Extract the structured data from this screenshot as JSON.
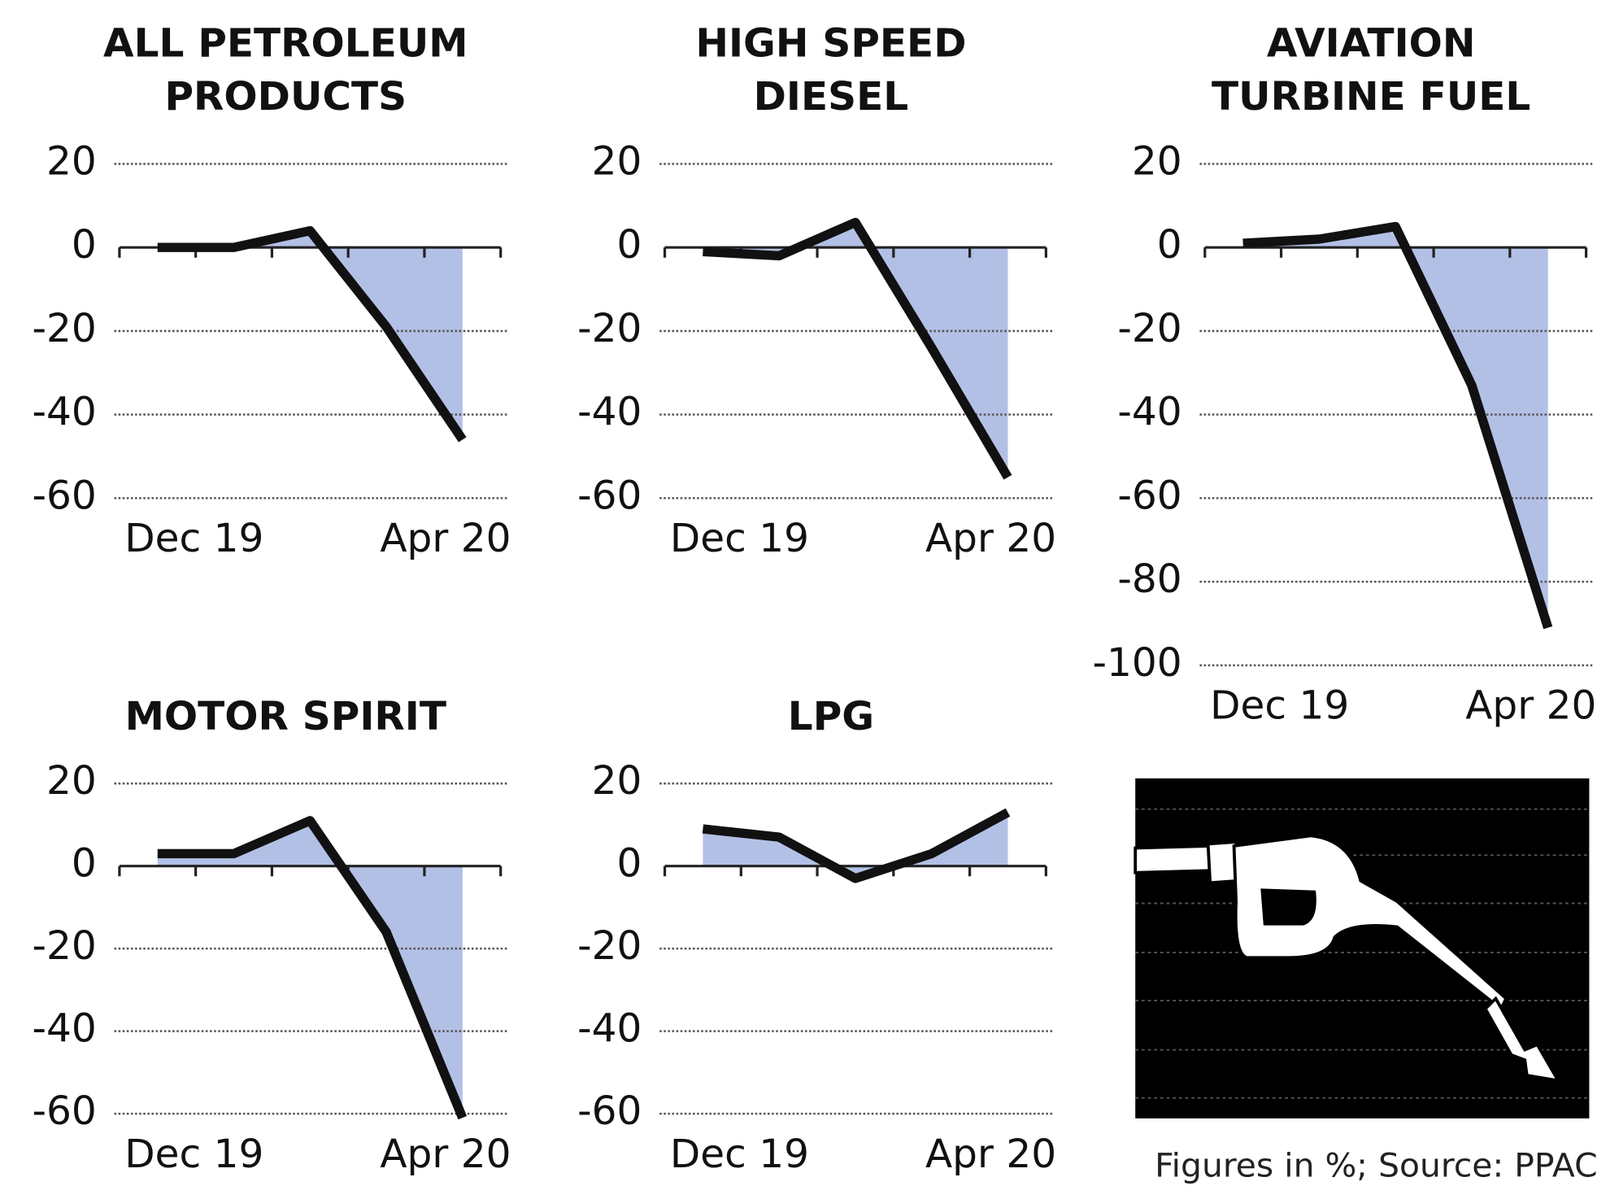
{
  "chart_data": [
    {
      "type": "line",
      "title": [
        "ALL PETROLEUM",
        "PRODUCTS"
      ],
      "categories": [
        "Dec 19",
        null,
        null,
        null,
        "Apr 20"
      ],
      "values": [
        0,
        0,
        4,
        -19,
        -46
      ],
      "color": "#111111",
      "fill": "#b3c0e6",
      "ylim": [
        -60,
        20
      ],
      "yticks": [
        20,
        0,
        -20,
        -40,
        -60
      ],
      "grid": true
    },
    {
      "type": "line",
      "title": [
        "HIGH SPEED",
        "DIESEL"
      ],
      "categories": [
        "Dec 19",
        null,
        null,
        null,
        "Apr 20"
      ],
      "values": [
        -1,
        -2,
        6,
        -24,
        -55
      ],
      "color": "#111111",
      "fill": "#b3c0e6",
      "ylim": [
        -60,
        20
      ],
      "yticks": [
        20,
        0,
        -20,
        -40,
        -60
      ],
      "grid": true
    },
    {
      "type": "line",
      "title": [
        "AVIATION",
        "TURBINE FUEL"
      ],
      "categories": [
        "Dec 19",
        null,
        null,
        null,
        "Apr 20"
      ],
      "values": [
        1,
        2,
        5,
        -33,
        -91
      ],
      "color": "#111111",
      "fill": "#b3c0e6",
      "ylim": [
        -100,
        20
      ],
      "yticks": [
        20,
        0,
        -20,
        -40,
        -60,
        -80,
        -100
      ],
      "grid": true
    },
    {
      "type": "line",
      "title": [
        "MOTOR SPIRIT"
      ],
      "categories": [
        "Dec 19",
        null,
        null,
        null,
        "Apr 20"
      ],
      "values": [
        3,
        3,
        11,
        -16,
        -61
      ],
      "color": "#111111",
      "fill": "#b3c0e6",
      "ylim": [
        -60,
        20
      ],
      "yticks": [
        20,
        0,
        -20,
        -40,
        -60
      ],
      "grid": true
    },
    {
      "type": "line",
      "title": [
        "LPG"
      ],
      "categories": [
        "Dec 19",
        null,
        null,
        null,
        "Apr 20"
      ],
      "values": [
        9,
        7,
        -3,
        3,
        13
      ],
      "color": "#111111",
      "fill": "#b3c0e6",
      "ylim": [
        -60,
        20
      ],
      "yticks": [
        20,
        0,
        -20,
        -40,
        -60
      ],
      "grid": true
    }
  ],
  "note": "Figures in %; Source: PPAC"
}
